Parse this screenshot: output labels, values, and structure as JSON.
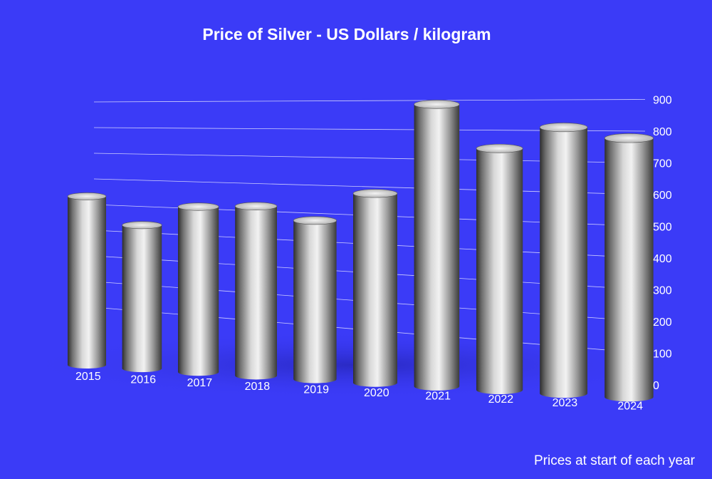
{
  "chart_data": {
    "type": "bar",
    "title": "Price of Silver - US Dollars / kilogram",
    "note": "Prices at start of each year",
    "categories": [
      "2015",
      "2016",
      "2017",
      "2018",
      "2019",
      "2020",
      "2021",
      "2022",
      "2023",
      "2024"
    ],
    "values": [
      520,
      440,
      505,
      515,
      480,
      570,
      845,
      720,
      790,
      765
    ],
    "y_ticks": [
      "0",
      "100",
      "200",
      "300",
      "400",
      "500",
      "600",
      "700",
      "800",
      "900"
    ],
    "ylim": [
      0,
      900
    ],
    "yaxis_position": "right",
    "grid": true,
    "style": "3d-cylinder",
    "colors": {
      "background": "#3b3bf7",
      "bar": "#c8c8c8",
      "text": "#ffffff",
      "grid": "#ffffff"
    }
  }
}
